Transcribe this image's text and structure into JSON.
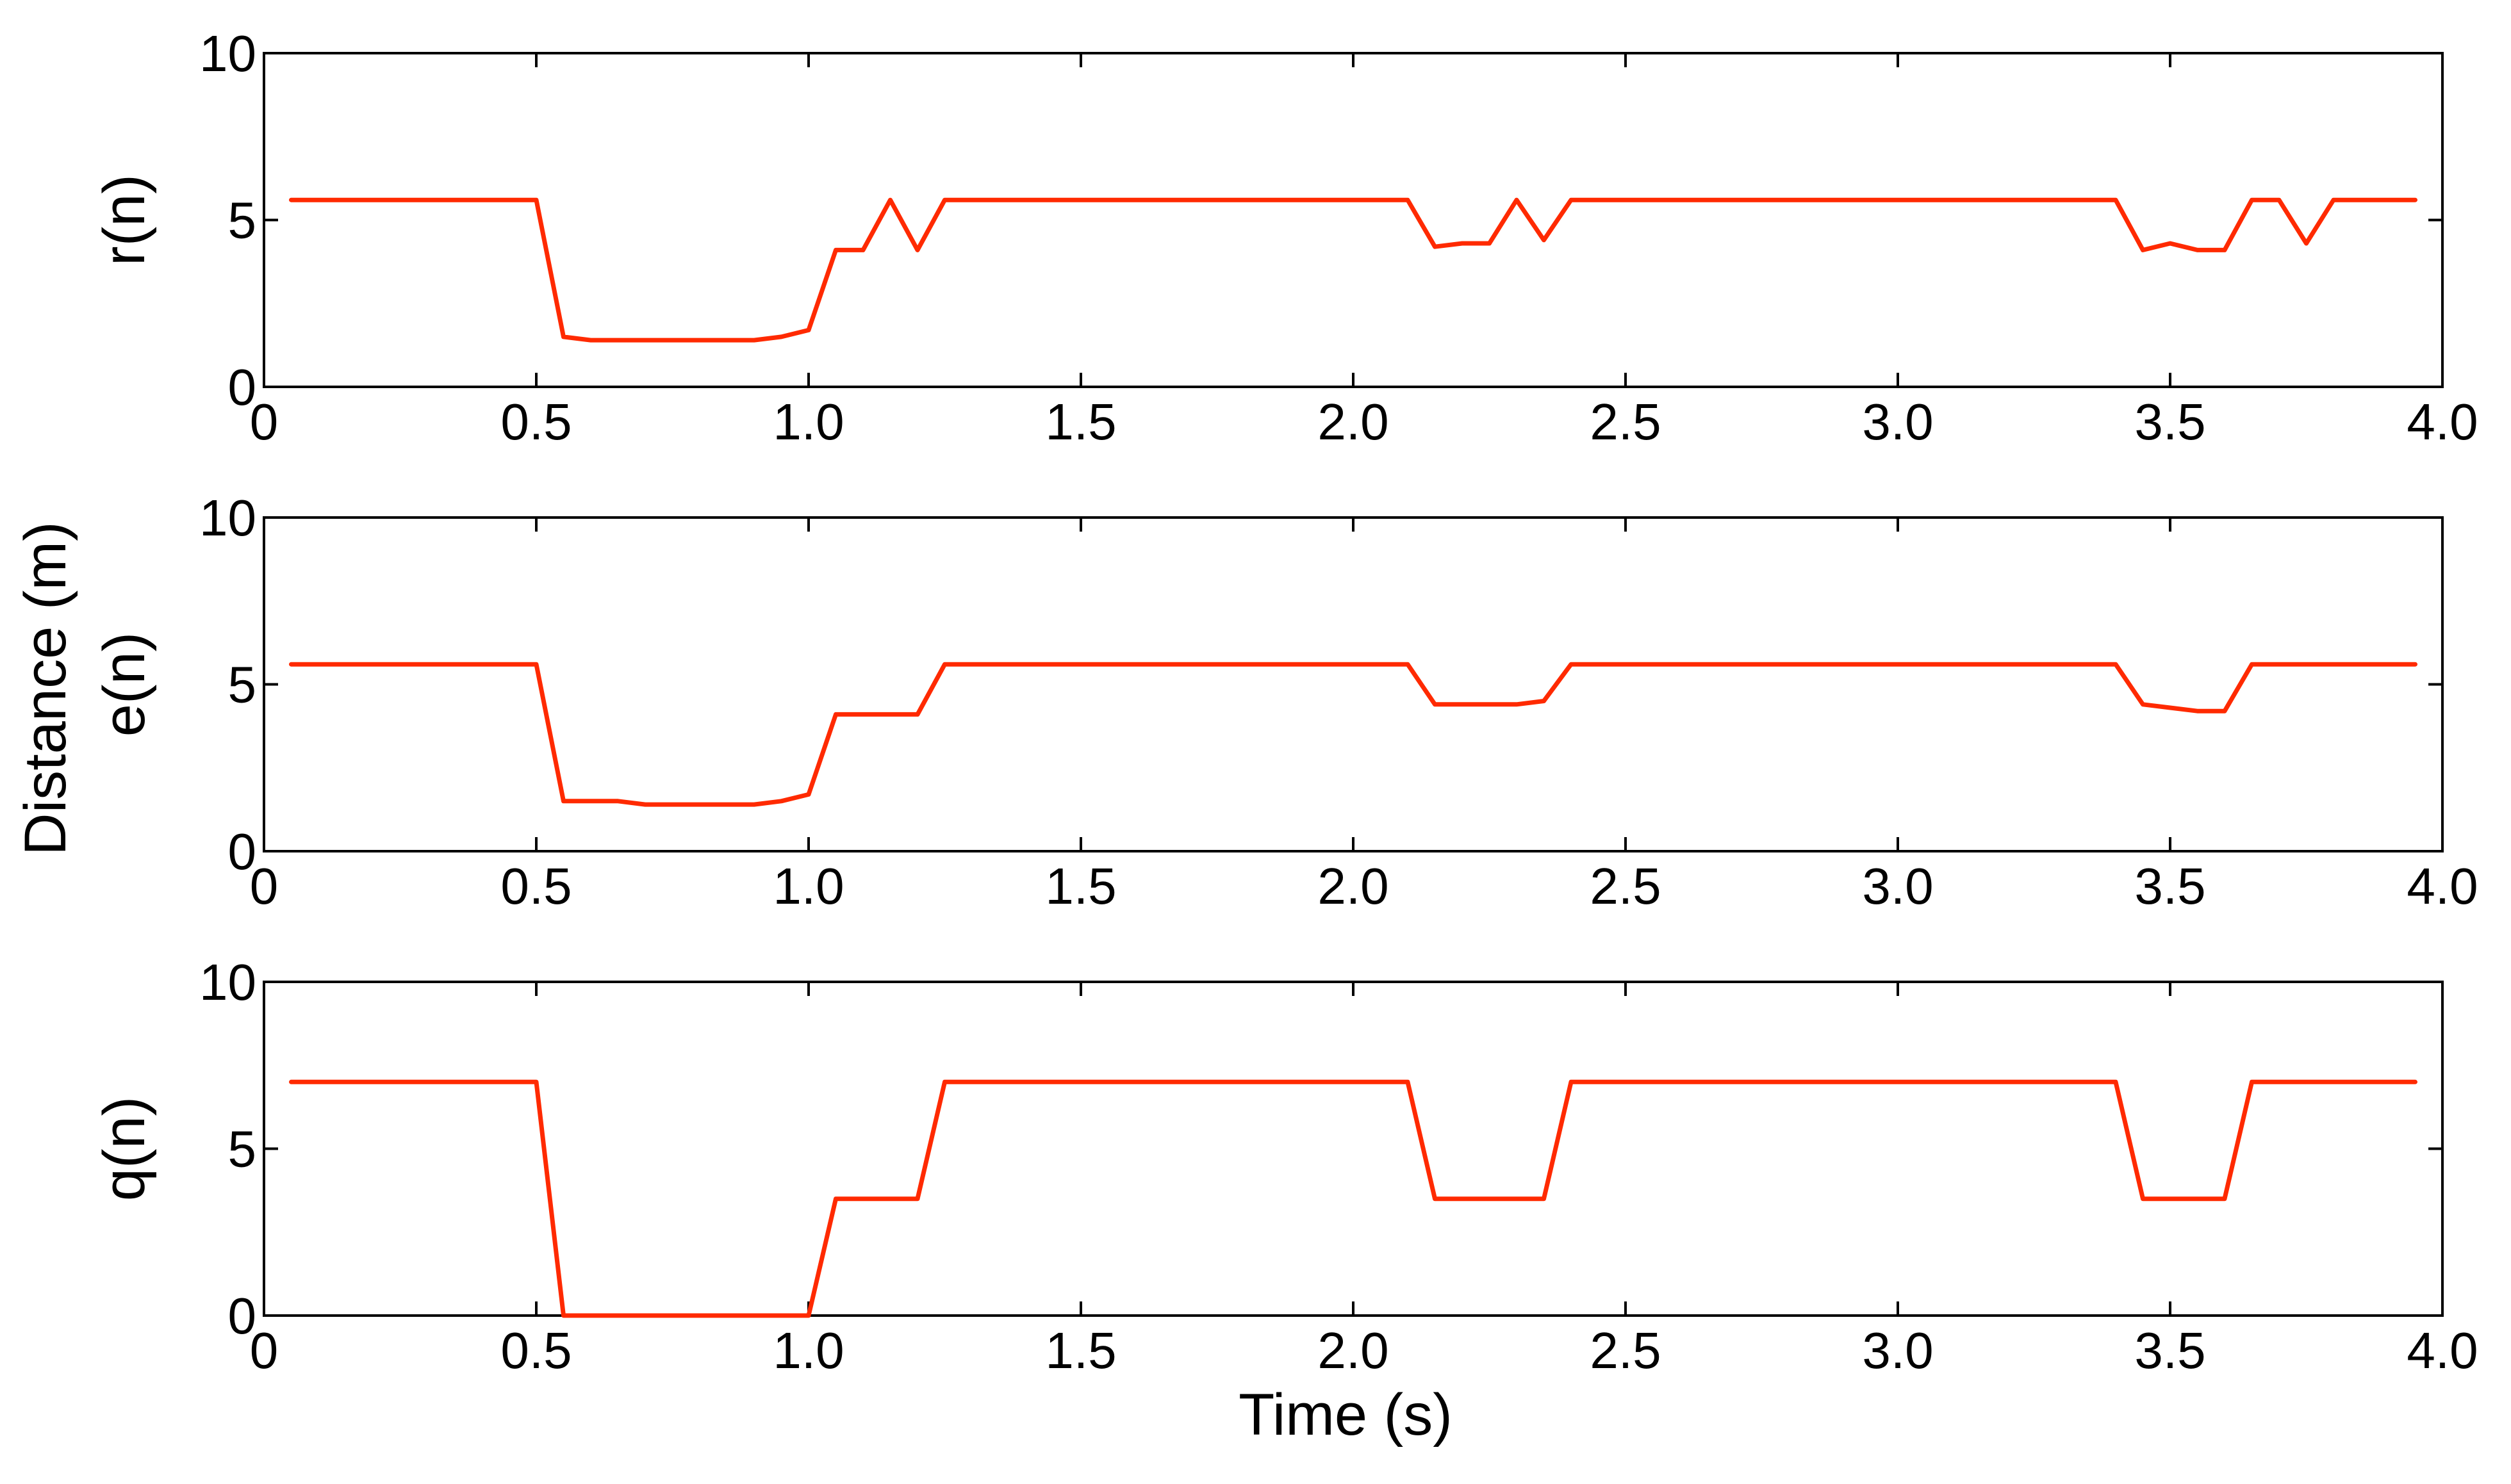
{
  "chart_data": {
    "type": "line",
    "shared_ylabel": "Distance (m)",
    "xlabel": "Time (s)",
    "line_color": "#ff2a00",
    "grid": false,
    "legend": "none",
    "panels": [
      {
        "ylabel": "r(n)",
        "xlim": [
          0,
          4.0
        ],
        "ylim": [
          0,
          10
        ],
        "xticks": [
          "0",
          "0.5",
          "1.0",
          "1.5",
          "2.0",
          "2.5",
          "3.0",
          "3.5",
          "4.0"
        ],
        "yticks": [
          "0",
          "5",
          "10"
        ],
        "series": [
          {
            "x": [
              0.05,
              0.5,
              0.55,
              0.6,
              0.65,
              0.7,
              0.75,
              0.8,
              0.85,
              0.9,
              0.95,
              1.0,
              1.05,
              1.1,
              1.15,
              1.2,
              1.25,
              2.1,
              2.15,
              2.2,
              2.25,
              2.3,
              2.35,
              2.4,
              3.4,
              3.45,
              3.5,
              3.55,
              3.6,
              3.65,
              3.7,
              3.75,
              3.8,
              3.95
            ],
            "y": [
              5.6,
              5.6,
              1.5,
              1.4,
              1.4,
              1.4,
              1.4,
              1.4,
              1.4,
              1.4,
              1.5,
              1.7,
              4.1,
              4.1,
              5.6,
              4.1,
              5.6,
              5.6,
              4.2,
              4.3,
              4.3,
              5.6,
              4.4,
              5.6,
              5.6,
              4.1,
              4.3,
              4.1,
              4.1,
              5.6,
              5.6,
              4.3,
              5.6,
              5.6
            ]
          }
        ]
      },
      {
        "ylabel": "e(n)",
        "xlim": [
          0,
          4.0
        ],
        "ylim": [
          0,
          10
        ],
        "xticks": [
          "0",
          "0.5",
          "1.0",
          "1.5",
          "2.0",
          "2.5",
          "3.0",
          "3.5",
          "4.0"
        ],
        "yticks": [
          "0",
          "5",
          "10"
        ],
        "series": [
          {
            "x": [
              0.05,
              0.5,
              0.55,
              0.6,
              0.65,
              0.7,
              0.75,
              0.8,
              0.85,
              0.9,
              0.95,
              1.0,
              1.05,
              1.1,
              1.15,
              1.2,
              1.25,
              2.1,
              2.15,
              2.2,
              2.25,
              2.3,
              2.35,
              2.4,
              3.4,
              3.45,
              3.5,
              3.55,
              3.6,
              3.65,
              3.95
            ],
            "y": [
              5.6,
              5.6,
              1.5,
              1.5,
              1.5,
              1.4,
              1.4,
              1.4,
              1.4,
              1.4,
              1.5,
              1.7,
              4.1,
              4.1,
              4.1,
              4.1,
              5.6,
              5.6,
              4.4,
              4.4,
              4.4,
              4.4,
              4.5,
              5.6,
              5.6,
              4.4,
              4.3,
              4.2,
              4.2,
              5.6,
              5.6
            ]
          }
        ]
      },
      {
        "ylabel": "q(n)",
        "xlim": [
          0,
          4.0
        ],
        "ylim": [
          0,
          10
        ],
        "xticks": [
          "0",
          "0.5",
          "1.0",
          "1.5",
          "2.0",
          "2.5",
          "3.0",
          "3.5",
          "4.0"
        ],
        "yticks": [
          "0",
          "5",
          "10"
        ],
        "series": [
          {
            "x": [
              0.05,
              0.5,
              0.55,
              1.0,
              1.05,
              1.2,
              1.25,
              2.1,
              2.15,
              2.35,
              2.4,
              3.4,
              3.45,
              3.6,
              3.65,
              3.95
            ],
            "y": [
              7.0,
              7.0,
              0.0,
              0.0,
              3.5,
              3.5,
              7.0,
              7.0,
              3.5,
              3.5,
              7.0,
              7.0,
              3.5,
              3.5,
              7.0,
              7.0
            ]
          }
        ]
      }
    ]
  }
}
